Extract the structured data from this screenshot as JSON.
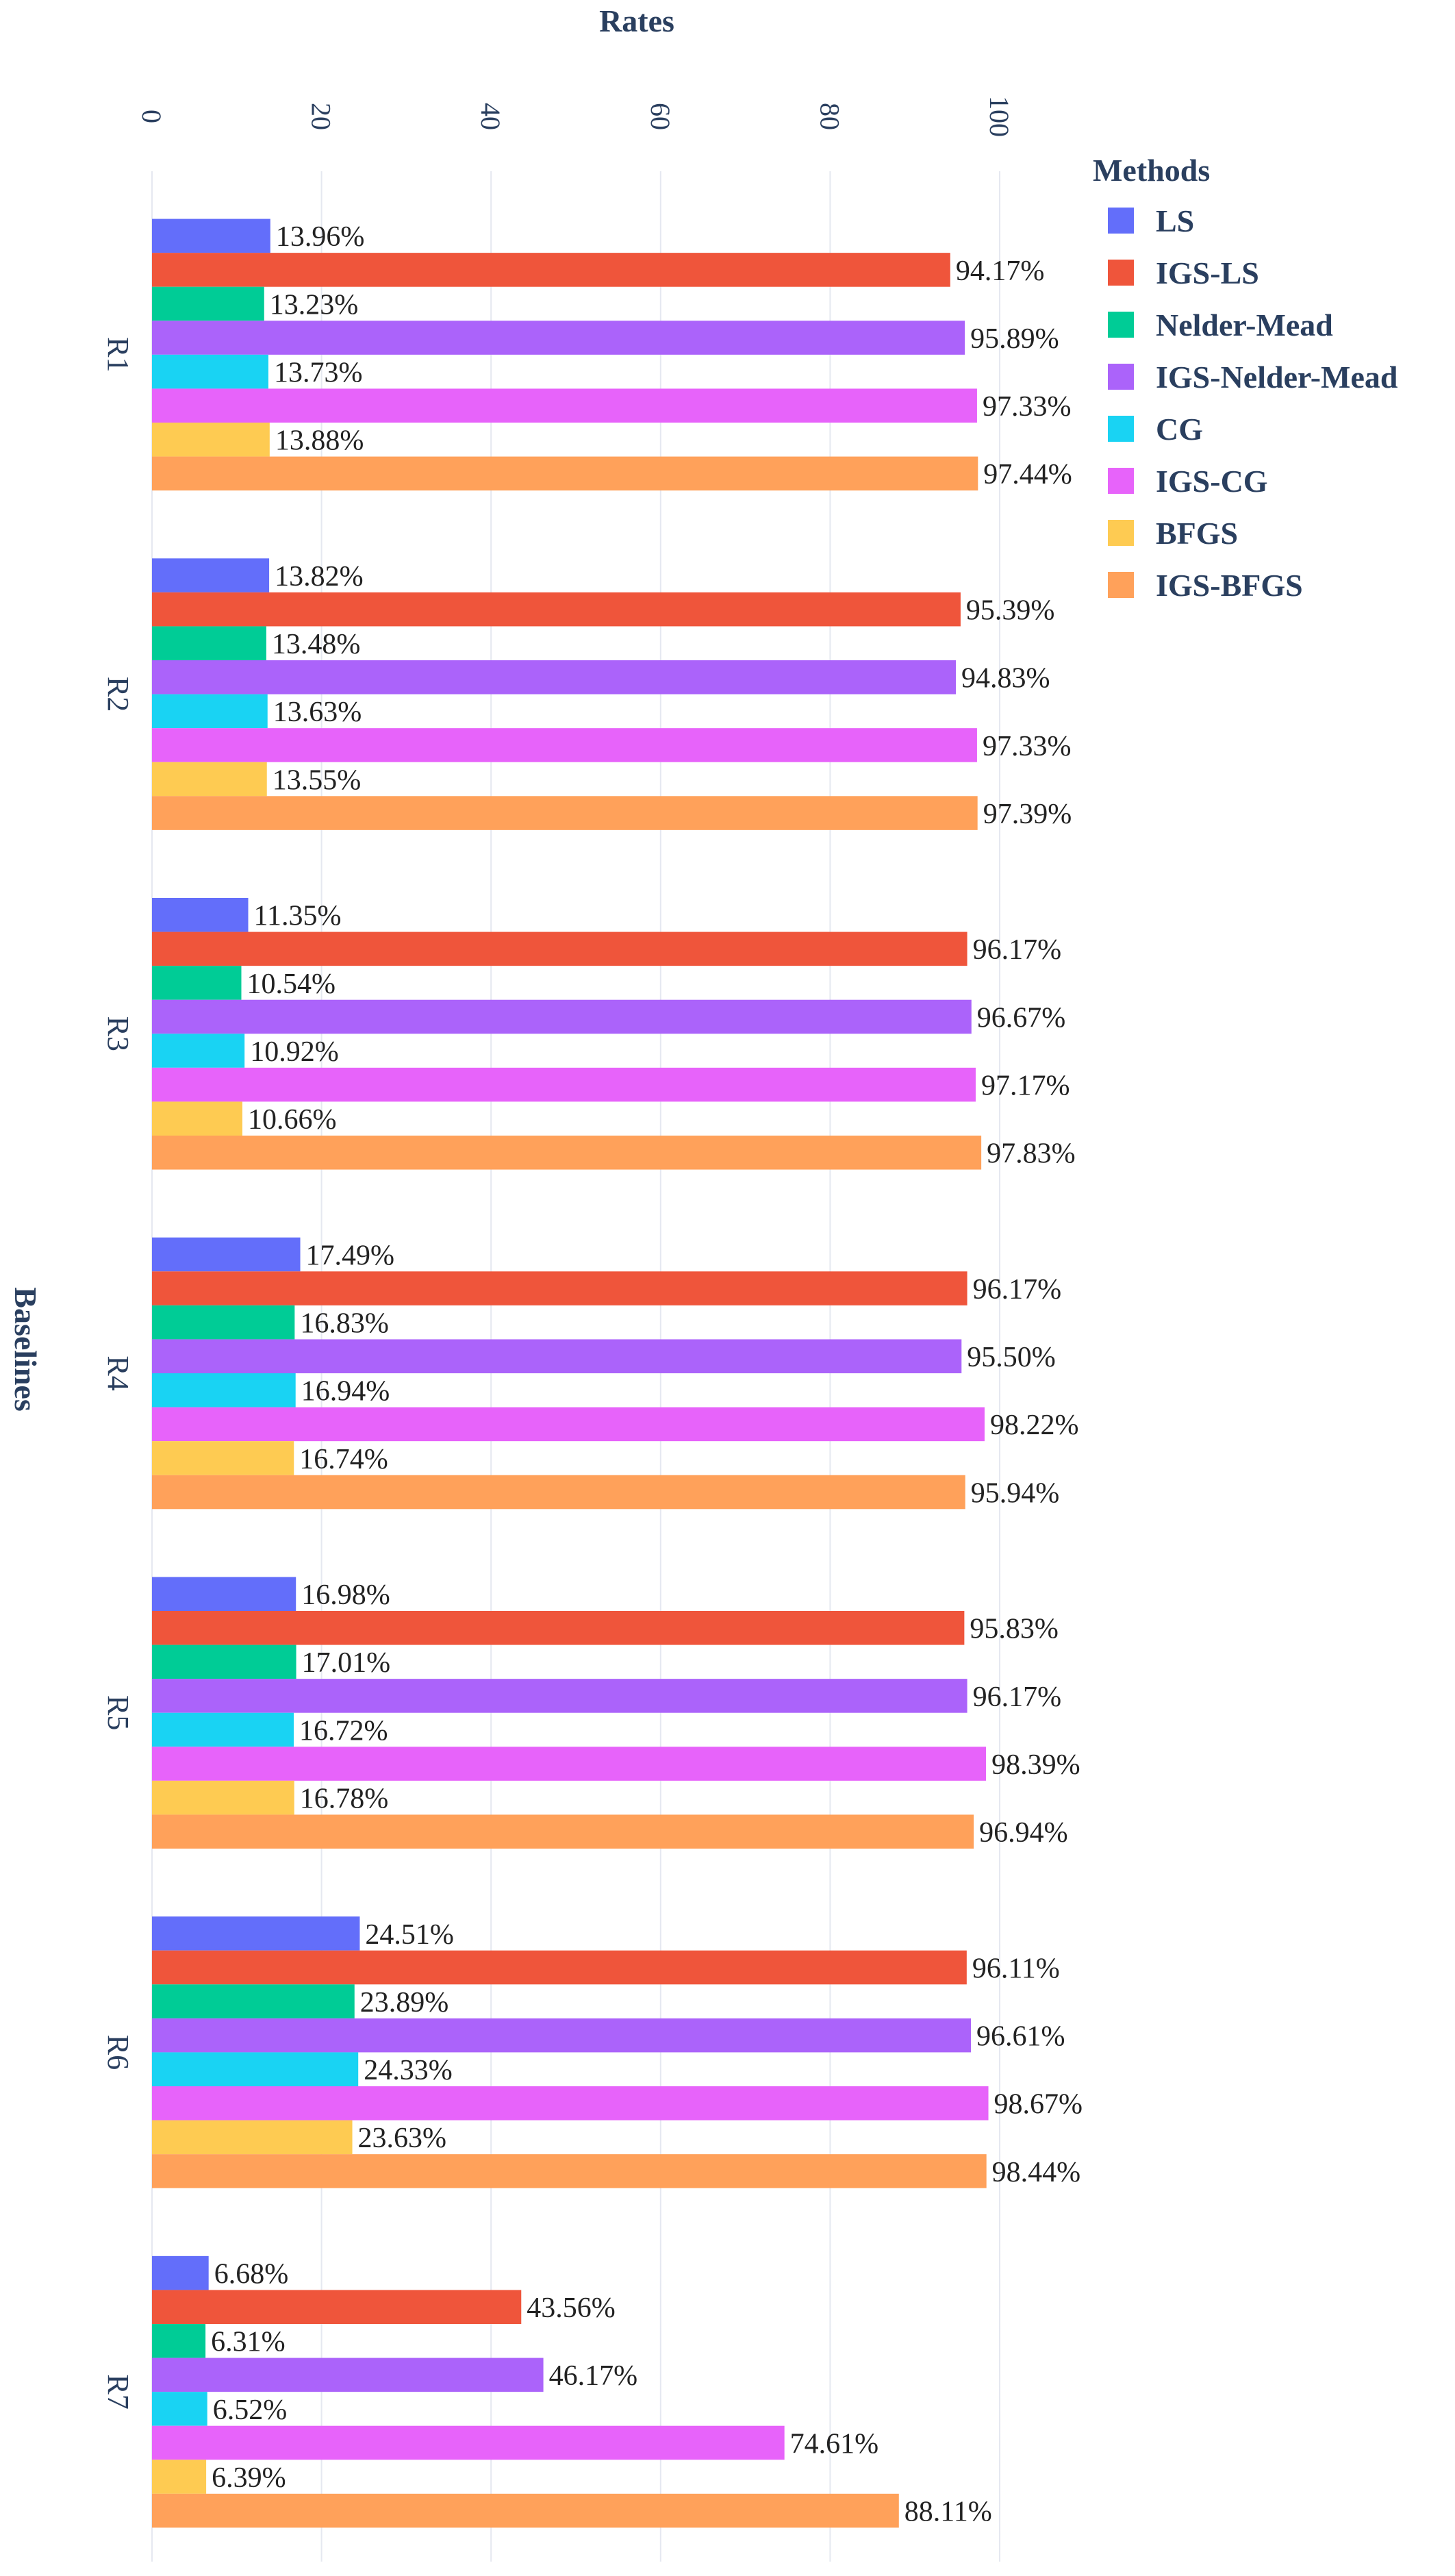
{
  "chart_data": {
    "type": "bar",
    "orientation": "horizontal",
    "xlabel": "Rates",
    "ylabel": "Baselines",
    "xlim": [
      0,
      100
    ],
    "x_ticks": [
      0,
      20,
      40,
      60,
      80,
      100
    ],
    "grid": true,
    "legend_title": "Methods",
    "legend_position": "top-right",
    "categories": [
      "R1",
      "R2",
      "R3",
      "R4",
      "R5",
      "R6",
      "R7"
    ],
    "series": [
      {
        "name": "LS",
        "color": "#636efa",
        "values": [
          13.96,
          13.82,
          11.35,
          17.49,
          16.98,
          24.51,
          6.68
        ],
        "labels": [
          "13.96%",
          "13.82%",
          "11.35%",
          "17.49%",
          "16.98%",
          "24.51%",
          "6.68%"
        ]
      },
      {
        "name": "IGS-LS",
        "color": "#ef553b",
        "values": [
          94.17,
          95.39,
          96.17,
          96.17,
          95.83,
          96.11,
          43.56
        ],
        "labels": [
          "94.17%",
          "95.39%",
          "96.17%",
          "96.17%",
          "95.83%",
          "96.11%",
          "43.56%"
        ]
      },
      {
        "name": "Nelder-Mead",
        "color": "#00cc96",
        "values": [
          13.23,
          13.48,
          10.54,
          16.83,
          17.01,
          23.89,
          6.31
        ],
        "labels": [
          "13.23%",
          "13.48%",
          "10.54%",
          "16.83%",
          "17.01%",
          "23.89%",
          "6.31%"
        ]
      },
      {
        "name": "IGS-Nelder-Mead",
        "color": "#ab63fa",
        "values": [
          95.89,
          94.83,
          96.67,
          95.5,
          96.17,
          96.61,
          46.17
        ],
        "labels": [
          "95.89%",
          "94.83%",
          "96.67%",
          "95.50%",
          "96.17%",
          "96.61%",
          "46.17%"
        ]
      },
      {
        "name": "CG",
        "color": "#19d3f3",
        "values": [
          13.73,
          13.63,
          10.92,
          16.94,
          16.72,
          24.33,
          6.52
        ],
        "labels": [
          "13.73%",
          "13.63%",
          "10.92%",
          "16.94%",
          "16.72%",
          "24.33%",
          "6.52%"
        ]
      },
      {
        "name": "IGS-CG",
        "color": "#e763fa",
        "values": [
          97.33,
          97.33,
          97.17,
          98.22,
          98.39,
          98.67,
          74.61
        ],
        "labels": [
          "97.33%",
          "97.33%",
          "97.17%",
          "98.22%",
          "98.39%",
          "98.67%",
          "74.61%"
        ]
      },
      {
        "name": "BFGS",
        "color": "#fecb52",
        "values": [
          13.88,
          13.55,
          10.66,
          16.74,
          16.78,
          23.63,
          6.39
        ],
        "labels": [
          "13.88%",
          "13.55%",
          "10.66%",
          "16.74%",
          "16.78%",
          "23.63%",
          "6.39%"
        ]
      },
      {
        "name": "IGS-BFGS",
        "color": "#ffa15a",
        "values": [
          97.44,
          97.39,
          97.83,
          95.94,
          96.94,
          98.44,
          88.11
        ],
        "labels": [
          "97.44%",
          "97.39%",
          "97.83%",
          "95.94%",
          "96.94%",
          "98.44%",
          "88.11%"
        ]
      }
    ]
  }
}
